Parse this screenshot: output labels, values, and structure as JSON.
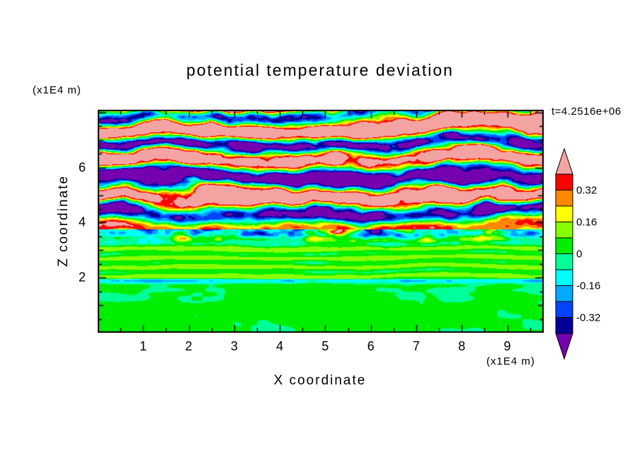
{
  "title": "potential temperature deviation",
  "time_label": "t=4.2516e+06",
  "axes": {
    "x": {
      "label": "X coordinate",
      "units": "(x1E4 m)",
      "min": 0,
      "max": 9.8,
      "tick_values": [
        1,
        2,
        3,
        4,
        5,
        6,
        7,
        8,
        9
      ],
      "tick_labels": [
        "1",
        "2",
        "3",
        "4",
        "5",
        "6",
        "7",
        "8",
        "9"
      ]
    },
    "z": {
      "label": "Z coordinate",
      "units": "(x1E4 m)",
      "min": 0,
      "max": 8.1,
      "tick_values": [
        6,
        4,
        2
      ],
      "tick_labels": [
        "6",
        "4",
        "2"
      ]
    }
  },
  "colorbar": {
    "labels": [
      "0.32",
      "0.16",
      "0",
      "-0.16",
      "-0.32"
    ],
    "label_level_indices": [
      1,
      3,
      5,
      7,
      9
    ]
  },
  "chart_data": {
    "type": "heatmap",
    "title": "potential temperature deviation",
    "xlabel": "X coordinate",
    "ylabel": "Z coordinate",
    "x_units": "(x1E4 m)",
    "z_units": "(x1E4 m)",
    "time": "t=4.2516e+06",
    "x_range": [
      0,
      9.8
    ],
    "z_range": [
      0,
      8.1
    ],
    "contour_interval": 0.08,
    "levels": [
      0.4,
      0.32,
      0.24,
      0.16,
      0.08,
      0,
      -0.08,
      -0.16,
      -0.24,
      -0.32,
      -0.4
    ],
    "band_colors": [
      "#ff0000",
      "#ff8800",
      "#ffff00",
      "#88ff00",
      "#00ee00",
      "#00ff99",
      "#00ffff",
      "#00aaff",
      "#0044ff",
      "#000099"
    ],
    "over_color": "#f4a3a3",
    "under_color": "#7400b0",
    "legend_position": "right",
    "grid": false,
    "regions": [
      {
        "z_range": [
          0,
          1.95
        ],
        "description": "weak deviations near 0: spring-green and green blobs, thin cyan/blue layer near z=1.9"
      },
      {
        "z_range": [
          1.95,
          3.75
        ],
        "description": "horizontally striped weakly positive layers (green / green-yellow / yellow) with scattered strong negative (purple/navy) patches near top"
      },
      {
        "z_range": [
          3.75,
          8.1
        ],
        "description": "strongly turbulent layered field alternating above +0.4 (pink) and below -0.4 (purple) with red/orange/yellow and cyan/blue filaments; pink dominant near top"
      }
    ]
  }
}
